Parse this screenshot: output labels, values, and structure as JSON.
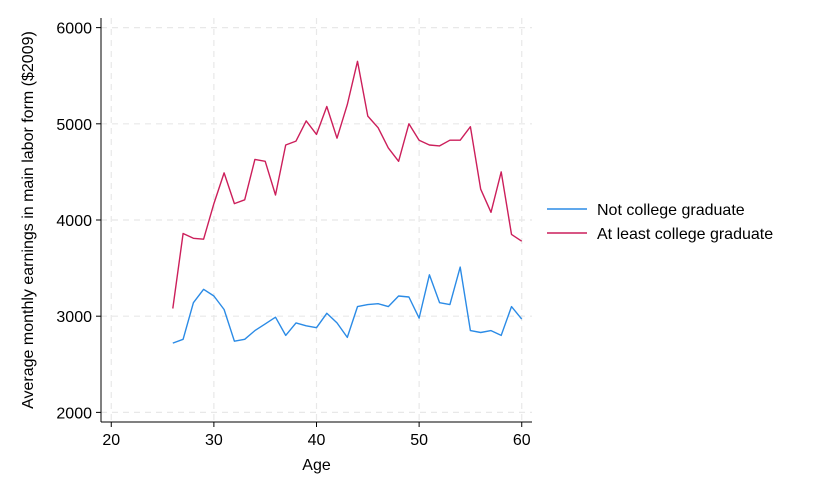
{
  "chart_data": {
    "type": "line",
    "xlabel": "Age",
    "ylabel": "Average monthly earnings in main labor form ($2009)",
    "xlim": [
      19,
      61
    ],
    "ylim": [
      1900,
      6100
    ],
    "xticks": [
      20,
      30,
      40,
      50,
      60
    ],
    "yticks": [
      2000,
      3000,
      4000,
      5000,
      6000
    ],
    "grid": true,
    "legend_position": "right",
    "x": [
      26,
      27,
      28,
      29,
      30,
      31,
      32,
      33,
      34,
      35,
      36,
      37,
      38,
      39,
      40,
      41,
      42,
      43,
      44,
      45,
      46,
      47,
      48,
      49,
      50,
      51,
      52,
      53,
      54,
      55,
      56,
      57,
      58,
      59,
      60
    ],
    "series": [
      {
        "name": "Not college graduate",
        "color": "#2b8be6",
        "values": [
          2720,
          2760,
          3140,
          3280,
          3210,
          3070,
          2740,
          2760,
          2850,
          2920,
          2990,
          2800,
          2930,
          2900,
          2880,
          3030,
          2930,
          2780,
          3100,
          3120,
          3130,
          3100,
          3210,
          3200,
          2980,
          3430,
          3140,
          3120,
          3510,
          2850,
          2830,
          2850,
          2800,
          3100,
          2970
        ]
      },
      {
        "name": "At least college graduate",
        "color": "#cc1f5b",
        "values": [
          3080,
          3860,
          3810,
          3800,
          4170,
          4490,
          4170,
          4210,
          4630,
          4610,
          4260,
          4780,
          4820,
          5030,
          4890,
          5180,
          4850,
          5200,
          5650,
          5080,
          4960,
          4750,
          4610,
          5000,
          4830,
          4780,
          4770,
          4830,
          4830,
          4970,
          4320,
          4080,
          4500,
          3850,
          3780
        ]
      }
    ]
  }
}
